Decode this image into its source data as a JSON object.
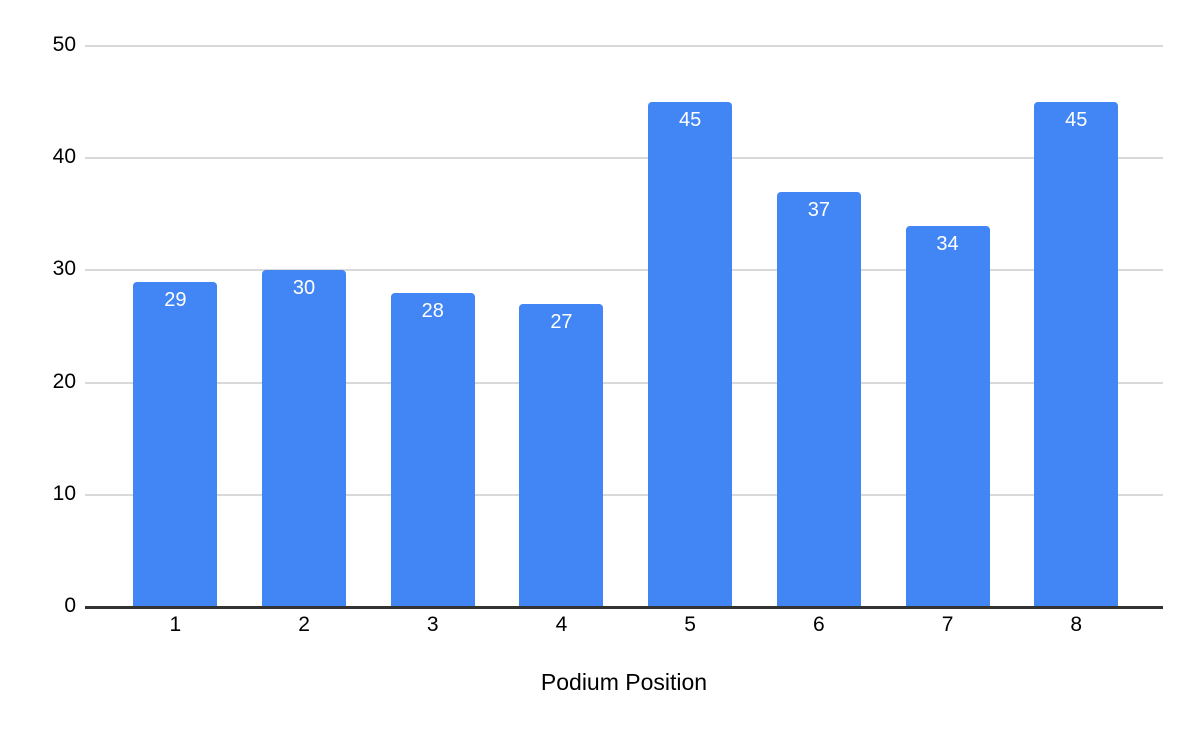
{
  "chart_data": {
    "type": "bar",
    "title": "",
    "xlabel": "Podium Position",
    "ylabel": "",
    "categories": [
      "1",
      "2",
      "3",
      "4",
      "5",
      "6",
      "7",
      "8"
    ],
    "values": [
      29,
      30,
      28,
      27,
      45,
      37,
      34,
      45
    ],
    "ylim": [
      0,
      50
    ],
    "yticks": [
      0,
      10,
      20,
      30,
      40,
      50
    ],
    "grid": true,
    "legend": "none",
    "colors": {
      "bar": "#4285f4",
      "bar_label": "#ffffff",
      "gridline": "#d9d9d9",
      "baseline": "#333333",
      "tick_label": "#000000"
    }
  }
}
